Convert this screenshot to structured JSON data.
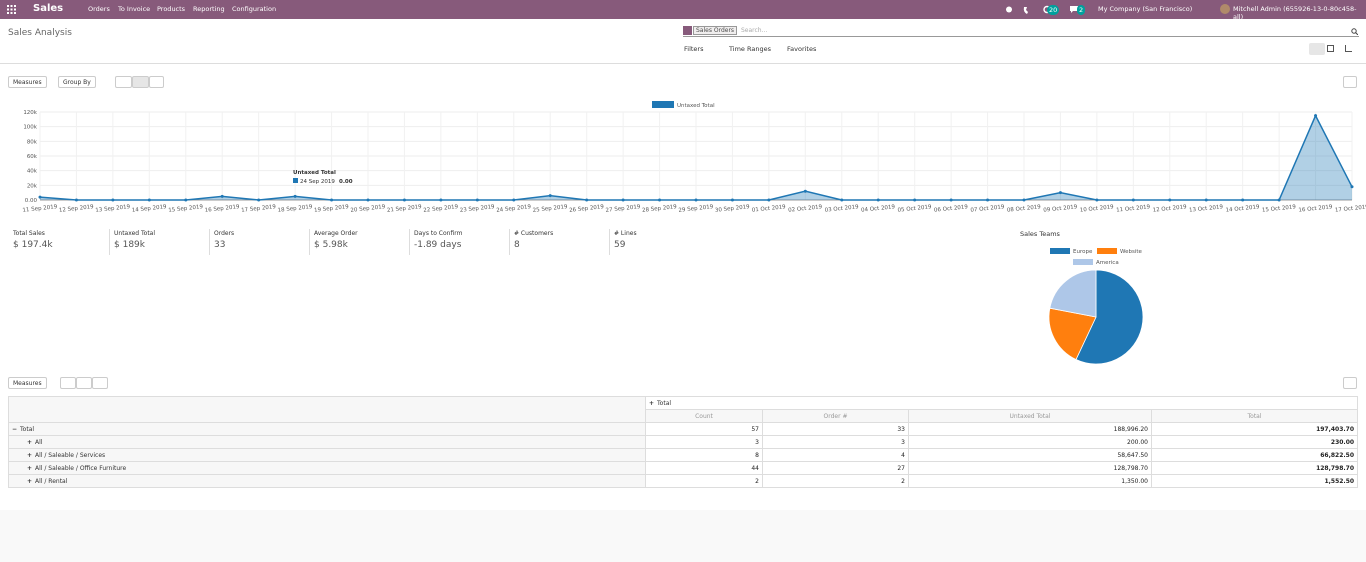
{
  "navbar": {
    "app": "Sales",
    "menu": [
      "Orders",
      "To Invoice",
      "Products",
      "Reporting",
      "Configuration"
    ],
    "badges": [
      "20",
      "2"
    ],
    "company": "My Company (San Francisco)",
    "user": "Mitchell Admin (655926-13-0-80c458-all)"
  },
  "control_panel": {
    "breadcrumb": "Sales Analysis",
    "facet": "Sales Orders",
    "search_placeholder": "Search...",
    "filters": "Filters",
    "time_ranges": "Time Ranges",
    "favorites": "Favorites",
    "measures": "Measures",
    "group_by": "Group By"
  },
  "chart_data": [
    {
      "type": "line",
      "x": [
        "11 Sep 2019",
        "12 Sep 2019",
        "13 Sep 2019",
        "14 Sep 2019",
        "15 Sep 2019",
        "16 Sep 2019",
        "17 Sep 2019",
        "18 Sep 2019",
        "19 Sep 2019",
        "20 Sep 2019",
        "21 Sep 2019",
        "22 Sep 2019",
        "23 Sep 2019",
        "24 Sep 2019",
        "25 Sep 2019",
        "26 Sep 2019",
        "27 Sep 2019",
        "28 Sep 2019",
        "29 Sep 2019",
        "30 Sep 2019",
        "01 Oct 2019",
        "02 Oct 2019",
        "03 Oct 2019",
        "04 Oct 2019",
        "05 Oct 2019",
        "06 Oct 2019",
        "07 Oct 2019",
        "08 Oct 2019",
        "09 Oct 2019",
        "10 Oct 2019",
        "11 Oct 2019",
        "12 Oct 2019",
        "13 Oct 2019",
        "14 Oct 2019",
        "15 Oct 2019",
        "16 Oct 2019",
        "17 Oct 2019"
      ],
      "series": [
        {
          "name": "Untaxed Total",
          "color": "#1f77b4",
          "values": [
            4000,
            0,
            0,
            0,
            0,
            5000,
            0,
            5000,
            0,
            0,
            0,
            0,
            0,
            0,
            6000,
            0,
            0,
            0,
            0,
            0,
            0,
            12000,
            0,
            0,
            0,
            0,
            0,
            0,
            10000,
            0,
            0,
            0,
            0,
            0,
            0,
            115000,
            18000
          ]
        }
      ],
      "ylim": [
        0,
        120000
      ],
      "yticks": [
        {
          "value": 0,
          "label": "0.00"
        },
        {
          "value": 20000,
          "label": "20k"
        },
        {
          "value": 40000,
          "label": "40k"
        },
        {
          "value": 60000,
          "label": "60k"
        },
        {
          "value": 80000,
          "label": "80k"
        },
        {
          "value": 100000,
          "label": "100k"
        },
        {
          "value": 120000,
          "label": "120k"
        }
      ],
      "grid": true,
      "tooltip": {
        "title": "Untaxed Total",
        "date": "24 Sep 2019",
        "value": "0.00"
      }
    },
    {
      "type": "pie",
      "title": "Sales Teams",
      "categories": [
        "Europe",
        "Website",
        "America"
      ],
      "values": [
        57,
        21,
        22
      ],
      "colors": [
        "#1f77b4",
        "#ff7f0e",
        "#aec7e8"
      ]
    }
  ],
  "kpis": [
    {
      "label": "Total Sales",
      "value": "$ 197.4k"
    },
    {
      "label": "Untaxed Total",
      "value": "$ 189k"
    },
    {
      "label": "Orders",
      "value": "33"
    },
    {
      "label": "Average Order",
      "value": "$ 5.98k"
    },
    {
      "label": "Days to Confirm",
      "value": "-1.89 days"
    },
    {
      "label": "# Customers",
      "value": "8"
    },
    {
      "label": "# Lines",
      "value": "59"
    }
  ],
  "pivot": {
    "measures": "Measures",
    "column_header": "Total",
    "columns": [
      "Count",
      "Order #",
      "Untaxed Total",
      "Total"
    ],
    "rows": [
      {
        "label": "Total",
        "cells": [
          "57",
          "33",
          "188,996.20",
          "197,403.70"
        ]
      },
      {
        "label": "All",
        "cells": [
          "3",
          "3",
          "200.00",
          "230.00"
        ]
      },
      {
        "label": "All / Saleable / Services",
        "cells": [
          "8",
          "4",
          "58,647.50",
          "66,822.50"
        ]
      },
      {
        "label": "All / Saleable / Office Furniture",
        "cells": [
          "44",
          "27",
          "128,798.70",
          "128,798.70"
        ]
      },
      {
        "label": "All / Rental",
        "cells": [
          "2",
          "2",
          "1,350.00",
          "1,552.50"
        ]
      }
    ]
  }
}
